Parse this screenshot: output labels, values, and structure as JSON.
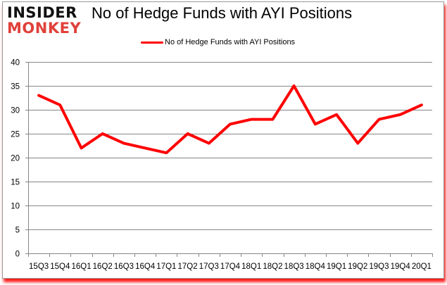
{
  "header": {
    "logo_line1": "INSIDER",
    "logo_line2": "MONKEY",
    "title": "No of Hedge Funds with AYI Positions"
  },
  "legend": {
    "label": "No of Hedge Funds with AYI Positions",
    "color": "#ff0000"
  },
  "colors": {
    "line": "#ff0000",
    "grid": "#868686",
    "logo_dark": "#111111",
    "logo_red": "#e0403a",
    "shadow": "#ff1a1a"
  },
  "chart_data": {
    "type": "line",
    "title": "No of Hedge Funds with AYI Positions",
    "xlabel": "",
    "ylabel": "",
    "categories": [
      "15Q3",
      "15Q4",
      "16Q1",
      "16Q2",
      "16Q3",
      "16Q4",
      "17Q1",
      "17Q2",
      "17Q3",
      "17Q4",
      "18Q1",
      "18Q2",
      "18Q3",
      "18Q4",
      "19Q1",
      "19Q2",
      "19Q3",
      "19Q4",
      "20Q1"
    ],
    "series": [
      {
        "name": "No of Hedge Funds with AYI Positions",
        "values": [
          33,
          31,
          22,
          25,
          23,
          22,
          21,
          25,
          23,
          27,
          28,
          28,
          35,
          27,
          29,
          23,
          28,
          29,
          31
        ]
      }
    ],
    "ylim": [
      0,
      40
    ],
    "yticks": [
      0,
      5,
      10,
      15,
      20,
      25,
      30,
      35,
      40
    ],
    "grid": true,
    "legend_position": "top"
  }
}
